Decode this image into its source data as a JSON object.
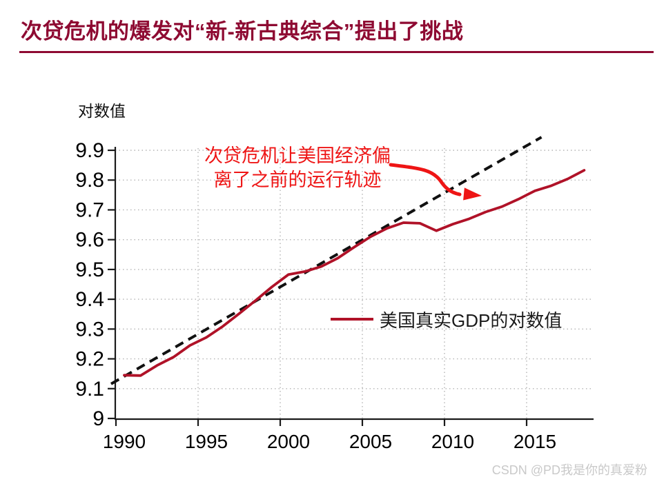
{
  "slide": {
    "title": "次贷危机的爆发对“新-新古典综合”提出了挑战",
    "accent_color": "#8E0A32"
  },
  "watermark": {
    "text": "CSDN @PD我是你的真爱粉",
    "color": "#c9c9c9"
  },
  "chart_data": {
    "type": "line",
    "title": "",
    "xlabel": "",
    "ylabel": "对数值",
    "xlim": [
      1989,
      2019.2
    ],
    "ylim": [
      9.0,
      9.9
    ],
    "grid": "dotted",
    "x_ticks": [
      1990,
      1995,
      2000,
      2005,
      2010,
      2015
    ],
    "y_ticks": [
      9.0,
      9.1,
      9.2,
      9.3,
      9.4,
      9.5,
      9.6,
      9.7,
      9.8,
      9.9
    ],
    "y_tick_labels": [
      "9",
      "9.1",
      "9.2",
      "9.3",
      "9.4",
      "9.5",
      "9.6",
      "9.7",
      "9.8",
      "9.9"
    ],
    "legend": {
      "label": "美国真实GDP的对数值",
      "position": "center-right"
    },
    "series": [
      {
        "name": "美国真实GDP的对数值",
        "type": "line",
        "style": "solid",
        "color": "#B01228",
        "x": [
          1990,
          1991,
          1992,
          1993,
          1994,
          1995,
          1996,
          1997,
          1998,
          1999,
          2000,
          2001,
          2002,
          2003,
          2004,
          2005,
          2006,
          2007,
          2008,
          2009,
          2010,
          2011,
          2012,
          2013,
          2014,
          2015,
          2016,
          2017,
          2018
        ],
        "y": [
          9.145,
          9.144,
          9.178,
          9.206,
          9.245,
          9.272,
          9.309,
          9.352,
          9.396,
          9.442,
          9.483,
          9.493,
          9.51,
          9.538,
          9.575,
          9.61,
          9.638,
          9.657,
          9.655,
          9.63,
          9.652,
          9.67,
          9.693,
          9.711,
          9.736,
          9.764,
          9.781,
          9.804,
          9.833
        ]
      }
    ],
    "trend_line": {
      "style": "dashed",
      "color": "#111111",
      "points": [
        [
          1989.2,
          9.116
        ],
        [
          2015.4,
          9.944
        ]
      ]
    },
    "annotation": {
      "lines": [
        "次贷危机让美国经济偏",
        "离了之前的运行轨迹"
      ],
      "color": "#EE1515"
    }
  }
}
